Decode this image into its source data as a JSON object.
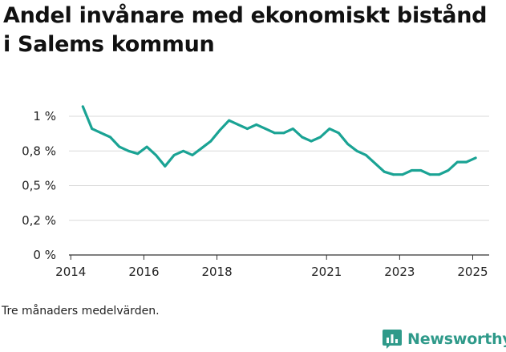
{
  "title": "Andel invånare med ekonomiskt bistånd i Salems kommun",
  "footnote": "Tre månaders medelvärden.",
  "brand": {
    "name": "Newsworthy",
    "icon": "newsworthy-logo-icon"
  },
  "colors": {
    "line": "#1aa394",
    "grid": "#d9d9d9",
    "axis": "#333333",
    "brand": "#2f9a8a"
  },
  "chart_data": {
    "type": "line",
    "title": "Andel invånare med ekonomiskt bistånd i Salems kommun",
    "xlabel": "",
    "ylabel": "",
    "xlim": [
      2014.0,
      2025.25
    ],
    "ylim": [
      0,
      1.0
    ],
    "y_ticks": [
      {
        "value": 0,
        "label": "0 %"
      },
      {
        "value": 0.25,
        "label": "0,2 %"
      },
      {
        "value": 0.5,
        "label": "0,5 %"
      },
      {
        "value": 0.75,
        "label": "0,8 %"
      },
      {
        "value": 1.0,
        "label": "1 %"
      }
    ],
    "x_ticks": [
      {
        "value": 2014,
        "label": "2014"
      },
      {
        "value": 2016,
        "label": "2016"
      },
      {
        "value": 2018,
        "label": "2018"
      },
      {
        "value": 2021,
        "label": "2021"
      },
      {
        "value": 2023,
        "label": "2023"
      },
      {
        "value": 2025,
        "label": "2025"
      }
    ],
    "grid": "horizontal",
    "legend": "none",
    "series": [
      {
        "x": [
          2014.33,
          2014.58,
          2014.83,
          2015.08,
          2015.33,
          2015.58,
          2015.83,
          2016.08,
          2016.33,
          2016.58,
          2016.83,
          2017.08,
          2017.33,
          2017.58,
          2017.83,
          2018.08,
          2018.33,
          2018.58,
          2018.83,
          2019.08,
          2019.33,
          2019.58,
          2019.83,
          2020.08,
          2020.33,
          2020.58,
          2020.83,
          2021.08,
          2021.33,
          2021.58,
          2021.83,
          2022.08,
          2022.33,
          2022.58,
          2022.83,
          2023.08,
          2023.33,
          2023.58,
          2023.83,
          2024.08,
          2024.33,
          2024.58,
          2024.83,
          2025.08,
          2025.33
        ],
        "values": [
          1.07,
          0.91,
          0.88,
          0.85,
          0.78,
          0.75,
          0.73,
          0.78,
          0.72,
          0.64,
          0.72,
          0.75,
          0.72,
          0.77,
          0.82,
          0.9,
          0.97,
          0.94,
          0.91,
          0.94,
          0.91,
          0.88,
          0.88,
          0.91,
          0.85,
          0.82,
          0.85,
          0.91,
          0.88,
          0.8,
          0.75,
          0.72,
          0.66,
          0.6,
          0.58,
          0.58,
          0.61,
          0.61,
          0.58,
          0.58,
          0.61,
          0.67,
          0.67,
          0.7,
          null
        ]
      }
    ]
  }
}
